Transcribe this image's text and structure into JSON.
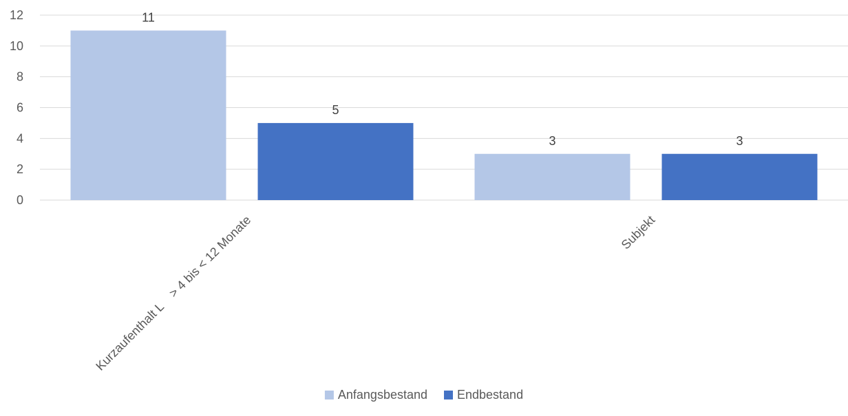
{
  "chart_data": {
    "type": "bar",
    "categories": [
      "Kurzaufenthalt L    > 4 bis < 12 Monate",
      "Subjekt"
    ],
    "series": [
      {
        "name": "Anfangsbestand",
        "values": [
          11,
          3
        ],
        "color": "#b4c7e7"
      },
      {
        "name": "Endbestand",
        "values": [
          5,
          3
        ],
        "color": "#4472c4"
      }
    ],
    "y_ticks": [
      0,
      2,
      4,
      6,
      8,
      10,
      12
    ],
    "ylim": [
      0,
      12
    ],
    "grid": true,
    "data_labels": true,
    "legend_position": "bottom"
  }
}
